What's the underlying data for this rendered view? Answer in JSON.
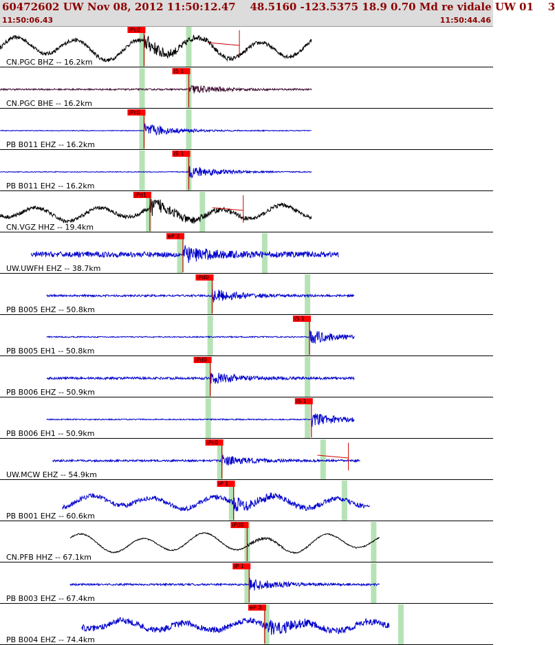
{
  "header": {
    "title": "60472602 UW Nov 08, 2012 11:50:12.47    48.5160 -123.5375 18.9 0.70 Md re vidale UW 01    3",
    "time_start": "11:50:06.43",
    "time_end": "11:50:44.46"
  },
  "chart_data": {
    "type": "line",
    "traces": [
      {
        "label": "CN.PGC BHZ -- 16.2km",
        "color": "#000000",
        "mode": "wave",
        "pick": "iPc0",
        "pick_t": 0.37,
        "green": [
          0.365,
          0.485
        ],
        "start": 0.0,
        "end": 0.8,
        "amp": 0.45,
        "noise": 0.1,
        "burst": 0.36,
        "cursor": 0.615
      },
      {
        "label": "CN.PGC BHE -- 16.2km",
        "color": "#3d0a2e",
        "mode": "flat",
        "pick": "iS 1",
        "pick_t": 0.485,
        "green": [
          0.365,
          0.485
        ],
        "start": 0.0,
        "end": 0.8,
        "amp": 0.07,
        "noise": 0.04,
        "burst": 0.25
      },
      {
        "label": "PB B011 EHZ -- 16.2km",
        "color": "#0000cc",
        "mode": "flat",
        "pick": "iPc0",
        "pick_t": 0.37,
        "green": [
          0.365,
          0.485
        ],
        "start": 0.0,
        "end": 0.8,
        "amp": 0.0,
        "noise": 0.02,
        "burst": 0.38
      },
      {
        "label": "PB B011 EH2 -- 16.2km",
        "color": "#0000cc",
        "mode": "flat",
        "pick": "iS 1",
        "pick_t": 0.485,
        "green": [
          0.365,
          0.485
        ],
        "start": 0.0,
        "end": 0.8,
        "amp": 0.0,
        "noise": 0.02,
        "burst": 0.36
      },
      {
        "label": "CN.VGZ HHZ -- 19.4km",
        "color": "#000000",
        "mode": "wave",
        "pick": "iPd1",
        "pick_t": 0.385,
        "green": [
          0.382,
          0.52
        ],
        "start": 0.0,
        "end": 0.8,
        "amp": 0.3,
        "noise": 0.1,
        "burst": 0.4,
        "cursor": 0.625
      },
      {
        "label": "UW.UWFH EHZ -- 38.7km",
        "color": "#0000cc",
        "mode": "flat",
        "pick": "eP 2",
        "pick_t": 0.47,
        "green": [
          0.462,
          0.68
        ],
        "start": 0.08,
        "end": 0.87,
        "amp": 0.0,
        "noise": 0.14,
        "burst": 0.38
      },
      {
        "label": "PB B005 EHZ -- 50.8km",
        "color": "#0000cc",
        "mode": "flat",
        "pick": "iPd0",
        "pick_t": 0.545,
        "green": [
          0.54,
          0.79
        ],
        "start": 0.12,
        "end": 0.91,
        "amp": 0.0,
        "noise": 0.05,
        "burst": 0.36
      },
      {
        "label": "PB B005 EH1 -- 50.8km",
        "color": "#0000cc",
        "mode": "flat",
        "pick": "iS 1",
        "pick_t": 0.795,
        "green": [
          0.54,
          0.79
        ],
        "start": 0.12,
        "end": 0.91,
        "amp": 0.0,
        "noise": 0.03,
        "burst": 0.36
      },
      {
        "label": "PB B006 EHZ -- 50.9km",
        "color": "#0000cc",
        "mode": "flat",
        "pick": "iPd0",
        "pick_t": 0.54,
        "green": [
          0.535,
          0.79
        ],
        "start": 0.12,
        "end": 0.91,
        "amp": 0.0,
        "noise": 0.06,
        "burst": 0.3
      },
      {
        "label": "PB B006 EH1 -- 50.9km",
        "color": "#0000cc",
        "mode": "flat",
        "pick": "iS 1",
        "pick_t": 0.8,
        "green": [
          0.535,
          0.79
        ],
        "start": 0.12,
        "end": 0.91,
        "amp": 0.0,
        "noise": 0.03,
        "burst": 0.36
      },
      {
        "label": "UW.MCW EHZ -- 54.9km",
        "color": "#0000cc",
        "mode": "flat",
        "pick": "iPc0",
        "pick_t": 0.57,
        "green": [
          0.565,
          0.83
        ],
        "start": 0.135,
        "end": 0.925,
        "amp": 0.0,
        "noise": 0.05,
        "burst": 0.25,
        "cursor": 0.895
      },
      {
        "label": "PB B001 EHZ -- 60.6km",
        "color": "#0000cc",
        "mode": "wave",
        "pick": "iP 1",
        "pick_t": 0.6,
        "green": [
          0.595,
          0.885
        ],
        "start": 0.16,
        "end": 0.95,
        "amp": 0.25,
        "noise": 0.12,
        "burst": 0.3
      },
      {
        "label": "CN.PFB HHZ -- 67.1km",
        "color": "#000000",
        "mode": "wave",
        "pick": "iPd0",
        "pick_t": 0.635,
        "green": [
          0.635,
          0.96
        ],
        "start": 0.18,
        "end": 0.975,
        "amp": 0.38,
        "noise": 0.03,
        "burst": 0.08
      },
      {
        "label": "PB B003 EHZ -- 67.4km",
        "color": "#0000cc",
        "mode": "flat",
        "pick": "iP 1",
        "pick_t": 0.64,
        "green": [
          0.635,
          0.96
        ],
        "start": 0.18,
        "end": 0.975,
        "amp": 0.0,
        "noise": 0.05,
        "burst": 0.32
      },
      {
        "label": "PB B004 EHZ -- 74.4km",
        "color": "#0000cc",
        "mode": "wave",
        "pick": "eP 3",
        "pick_t": 0.68,
        "green": [
          0.685,
          1.03
        ],
        "start": 0.21,
        "end": 1.0,
        "amp": 0.2,
        "noise": 0.16,
        "burst": 0.3
      }
    ]
  }
}
